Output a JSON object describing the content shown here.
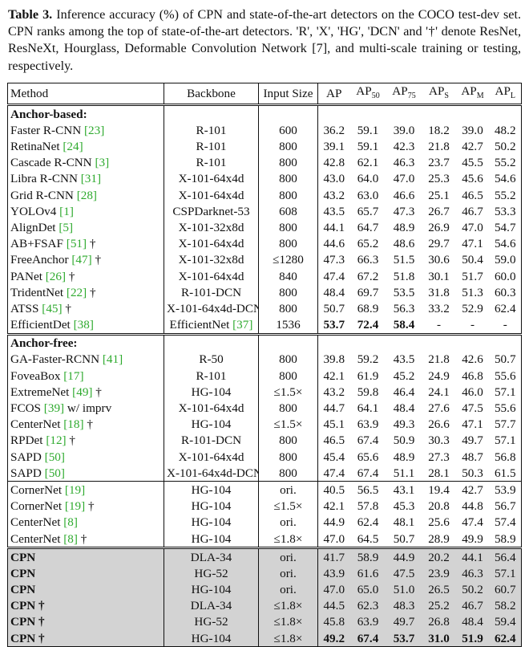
{
  "caption": {
    "label": "Table 3.",
    "text": "Inference accuracy (%) of CPN and state-of-the-art detectors on the COCO test-dev set. CPN ranks among the top of state-of-the-art detectors. 'R', 'X', 'HG', 'DCN' and '†' denote ResNet, ResNeXt, Hourglass, Deformable Convolution Network [7], and multi-scale training or testing, respectively."
  },
  "table": {
    "headers": [
      "Method",
      "Backbone",
      "Input Size",
      "AP",
      "AP50",
      "AP75",
      "APS",
      "APM",
      "APL"
    ],
    "header_display": {
      "method": "Method",
      "backbone": "Backbone",
      "input_size": "Input Size",
      "ap": "AP",
      "ap50": "AP",
      "ap50_sub": "50",
      "ap75": "AP",
      "ap75_sub": "75",
      "aps": "AP",
      "aps_sub": "S",
      "apm": "AP",
      "apm_sub": "M",
      "apl": "AP",
      "apl_sub": "L"
    },
    "sections": [
      {
        "title": "Anchor-based:",
        "rows": [
          {
            "method": "Faster R-CNN",
            "ref": "[23]",
            "suffix": "",
            "backbone": "R-101",
            "input": "600",
            "vals": [
              "36.2",
              "59.1",
              "39.0",
              "18.2",
              "39.0",
              "48.2"
            ]
          },
          {
            "method": "RetinaNet",
            "ref": "[24]",
            "suffix": "",
            "backbone": "R-101",
            "input": "800",
            "vals": [
              "39.1",
              "59.1",
              "42.3",
              "21.8",
              "42.7",
              "50.2"
            ]
          },
          {
            "method": "Cascade R-CNN",
            "ref": "[3]",
            "suffix": "",
            "backbone": "R-101",
            "input": "800",
            "vals": [
              "42.8",
              "62.1",
              "46.3",
              "23.7",
              "45.5",
              "55.2"
            ]
          },
          {
            "method": "Libra R-CNN",
            "ref": "[31]",
            "suffix": "",
            "backbone": "X-101-64x4d",
            "input": "800",
            "vals": [
              "43.0",
              "64.0",
              "47.0",
              "25.3",
              "45.6",
              "54.6"
            ]
          },
          {
            "method": "Grid R-CNN",
            "ref": "[28]",
            "suffix": "",
            "backbone": "X-101-64x4d",
            "input": "800",
            "vals": [
              "43.2",
              "63.0",
              "46.6",
              "25.1",
              "46.5",
              "55.2"
            ]
          },
          {
            "method": "YOLOv4",
            "ref": "[1]",
            "suffix": "",
            "backbone": "CSPDarknet-53",
            "input": "608",
            "vals": [
              "43.5",
              "65.7",
              "47.3",
              "26.7",
              "46.7",
              "53.3"
            ]
          },
          {
            "method": "AlignDet",
            "ref": "[5]",
            "suffix": "",
            "backbone": "X-101-32x8d",
            "input": "800",
            "vals": [
              "44.1",
              "64.7",
              "48.9",
              "26.9",
              "47.0",
              "54.7"
            ]
          },
          {
            "method": "AB+FSAF",
            "ref": "[51]",
            "suffix": " †",
            "backbone": "X-101-64x4d",
            "input": "800",
            "vals": [
              "44.6",
              "65.2",
              "48.6",
              "29.7",
              "47.1",
              "54.6"
            ]
          },
          {
            "method": "FreeAnchor",
            "ref": "[47]",
            "suffix": " †",
            "backbone": "X-101-32x8d",
            "input": "≤1280",
            "vals": [
              "47.3",
              "66.3",
              "51.5",
              "30.6",
              "50.4",
              "59.0"
            ]
          },
          {
            "method": "PANet",
            "ref": "[26]",
            "suffix": " †",
            "backbone": "X-101-64x4d",
            "input": "840",
            "vals": [
              "47.4",
              "67.2",
              "51.8",
              "30.1",
              "51.7",
              "60.0"
            ]
          },
          {
            "method": "TridentNet",
            "ref": "[22]",
            "suffix": " †",
            "backbone": "R-101-DCN",
            "input": "800",
            "vals": [
              "48.4",
              "69.7",
              "53.5",
              "31.8",
              "51.3",
              "60.3"
            ]
          },
          {
            "method": "ATSS",
            "ref": "[45]",
            "suffix": " †",
            "backbone": "X-101-64x4d-DCN",
            "input": "800",
            "vals": [
              "50.7",
              "68.9",
              "56.3",
              "33.2",
              "52.9",
              "62.4"
            ]
          },
          {
            "method": "EfficientDet",
            "ref": "[38]",
            "suffix": "",
            "backbone": "EfficientNet",
            "backbone_ref": " [37]",
            "input": "1536",
            "vals": [
              "53.7",
              "72.4",
              "58.4",
              "-",
              "-",
              "-"
            ],
            "bold": [
              0,
              1,
              2
            ]
          }
        ]
      },
      {
        "title": "Anchor-free:",
        "rows": [
          {
            "method": "GA-Faster-RCNN",
            "ref": "[41]",
            "suffix": "",
            "backbone": "R-50",
            "input": "800",
            "vals": [
              "39.8",
              "59.2",
              "43.5",
              "21.8",
              "42.6",
              "50.7"
            ]
          },
          {
            "method": "FoveaBox",
            "ref": "[17]",
            "suffix": "",
            "backbone": "R-101",
            "input": "800",
            "vals": [
              "42.1",
              "61.9",
              "45.2",
              "24.9",
              "46.8",
              "55.6"
            ]
          },
          {
            "method": "ExtremeNet",
            "ref": "[49]",
            "suffix": " †",
            "backbone": "HG-104",
            "input": "≤1.5×",
            "vals": [
              "43.2",
              "59.8",
              "46.4",
              "24.1",
              "46.0",
              "57.1"
            ]
          },
          {
            "method": "FCOS",
            "ref": "[39]",
            "suffix": " w/ imprv",
            "backbone": "X-101-64x4d",
            "input": "800",
            "vals": [
              "44.7",
              "64.1",
              "48.4",
              "27.6",
              "47.5",
              "55.6"
            ]
          },
          {
            "method": "CenterNet",
            "ref": "[18]",
            "suffix": " †",
            "backbone": "HG-104",
            "input": "≤1.5×",
            "vals": [
              "45.1",
              "63.9",
              "49.3",
              "26.6",
              "47.1",
              "57.7"
            ]
          },
          {
            "method": "RPDet",
            "ref": "[12]",
            "suffix": " †",
            "backbone": "R-101-DCN",
            "input": "800",
            "vals": [
              "46.5",
              "67.4",
              "50.9",
              "30.3",
              "49.7",
              "57.1"
            ]
          },
          {
            "method": "SAPD",
            "ref": "[50]",
            "suffix": "",
            "backbone": "X-101-64x4d",
            "input": "800",
            "vals": [
              "45.4",
              "65.6",
              "48.9",
              "27.3",
              "48.7",
              "56.8"
            ]
          },
          {
            "method": "SAPD",
            "ref": "[50]",
            "suffix": "",
            "backbone": "X-101-64x4d-DCN",
            "input": "800",
            "vals": [
              "47.4",
              "67.4",
              "51.1",
              "28.1",
              "50.3",
              "61.5"
            ]
          }
        ]
      },
      {
        "title": "",
        "rows": [
          {
            "method": "CornerNet",
            "ref": "[19]",
            "suffix": "",
            "backbone": "HG-104",
            "input": "ori.",
            "vals": [
              "40.5",
              "56.5",
              "43.1",
              "19.4",
              "42.7",
              "53.9"
            ]
          },
          {
            "method": "CornerNet",
            "ref": "[19]",
            "suffix": " †",
            "backbone": "HG-104",
            "input": "≤1.5×",
            "vals": [
              "42.1",
              "57.8",
              "45.3",
              "20.8",
              "44.8",
              "56.7"
            ]
          },
          {
            "method": "CenterNet",
            "ref": "[8]",
            "suffix": "",
            "backbone": "HG-104",
            "input": "ori.",
            "vals": [
              "44.9",
              "62.4",
              "48.1",
              "25.6",
              "47.4",
              "57.4"
            ]
          },
          {
            "method": "CenterNet",
            "ref": "[8]",
            "suffix": " †",
            "backbone": "HG-104",
            "input": "≤1.8×",
            "vals": [
              "47.0",
              "64.5",
              "50.7",
              "28.9",
              "49.9",
              "58.9"
            ]
          }
        ]
      },
      {
        "title": "",
        "highlight": true,
        "rows": [
          {
            "method": "CPN",
            "ref": "",
            "suffix": "",
            "backbone": "DLA-34",
            "input": "ori.",
            "vals": [
              "41.7",
              "58.9",
              "44.9",
              "20.2",
              "44.1",
              "56.4"
            ]
          },
          {
            "method": "CPN",
            "ref": "",
            "suffix": "",
            "backbone": "HG-52",
            "input": "ori.",
            "vals": [
              "43.9",
              "61.6",
              "47.5",
              "23.9",
              "46.3",
              "57.1"
            ]
          },
          {
            "method": "CPN",
            "ref": "",
            "suffix": "",
            "backbone": "HG-104",
            "input": "ori.",
            "vals": [
              "47.0",
              "65.0",
              "51.0",
              "26.5",
              "50.2",
              "60.7"
            ]
          },
          {
            "method": "CPN",
            "ref": "",
            "suffix": " †",
            "backbone": "DLA-34",
            "input": "≤1.8×",
            "vals": [
              "44.5",
              "62.3",
              "48.3",
              "25.2",
              "46.7",
              "58.2"
            ]
          },
          {
            "method": "CPN",
            "ref": "",
            "suffix": " †",
            "backbone": "HG-52",
            "input": "≤1.8×",
            "vals": [
              "45.8",
              "63.9",
              "49.7",
              "26.8",
              "48.4",
              "59.4"
            ]
          },
          {
            "method": "CPN",
            "ref": "",
            "suffix": " †",
            "backbone": "HG-104",
            "input": "≤1.8×",
            "vals": [
              "49.2",
              "67.4",
              "53.7",
              "31.0",
              "51.9",
              "62.4"
            ],
            "bold": [
              0,
              1,
              2,
              3,
              4,
              5
            ]
          }
        ]
      }
    ]
  },
  "colors": {
    "ref": "#2eaa2e",
    "highlight": "#d3d3d3",
    "text": "#111111"
  }
}
